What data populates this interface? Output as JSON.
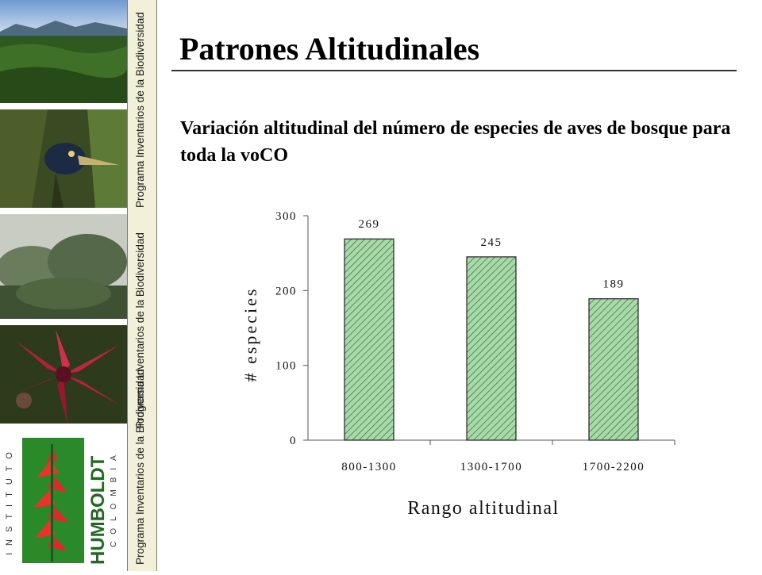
{
  "sidebar": {
    "band_text_top": "Programa Inventarios de la Biodiversidad",
    "band_text_middle": "Programa Inventarios de la Biodiversidad",
    "band_text_bottom": "Programa Inventarios de la Biodiversidad",
    "logo": {
      "word_vertical_left": "INSTITUTO",
      "word_main": "HUMBOLDT",
      "word_sub": "COLOMBIA"
    },
    "band_color": "#f3f0da"
  },
  "slide": {
    "title": "Patrones Altitudinales",
    "subtitle": "Variación altitudinal del número de especies de aves de bosque para toda la voCO"
  },
  "chart_data": {
    "type": "bar",
    "categories": [
      "800-1300",
      "1300-1700",
      "1700-2200"
    ],
    "values": [
      269,
      245,
      189
    ],
    "data_labels": [
      "269",
      "245",
      "189"
    ],
    "xlabel": "Rango altitudinal",
    "ylabel": "# especies",
    "ylim": [
      0,
      300
    ],
    "yticks": [
      "0",
      "100",
      "200",
      "300"
    ],
    "grid": false,
    "bar_fill": "#a8d9a8",
    "bar_hatch": "#3a6a3a"
  }
}
